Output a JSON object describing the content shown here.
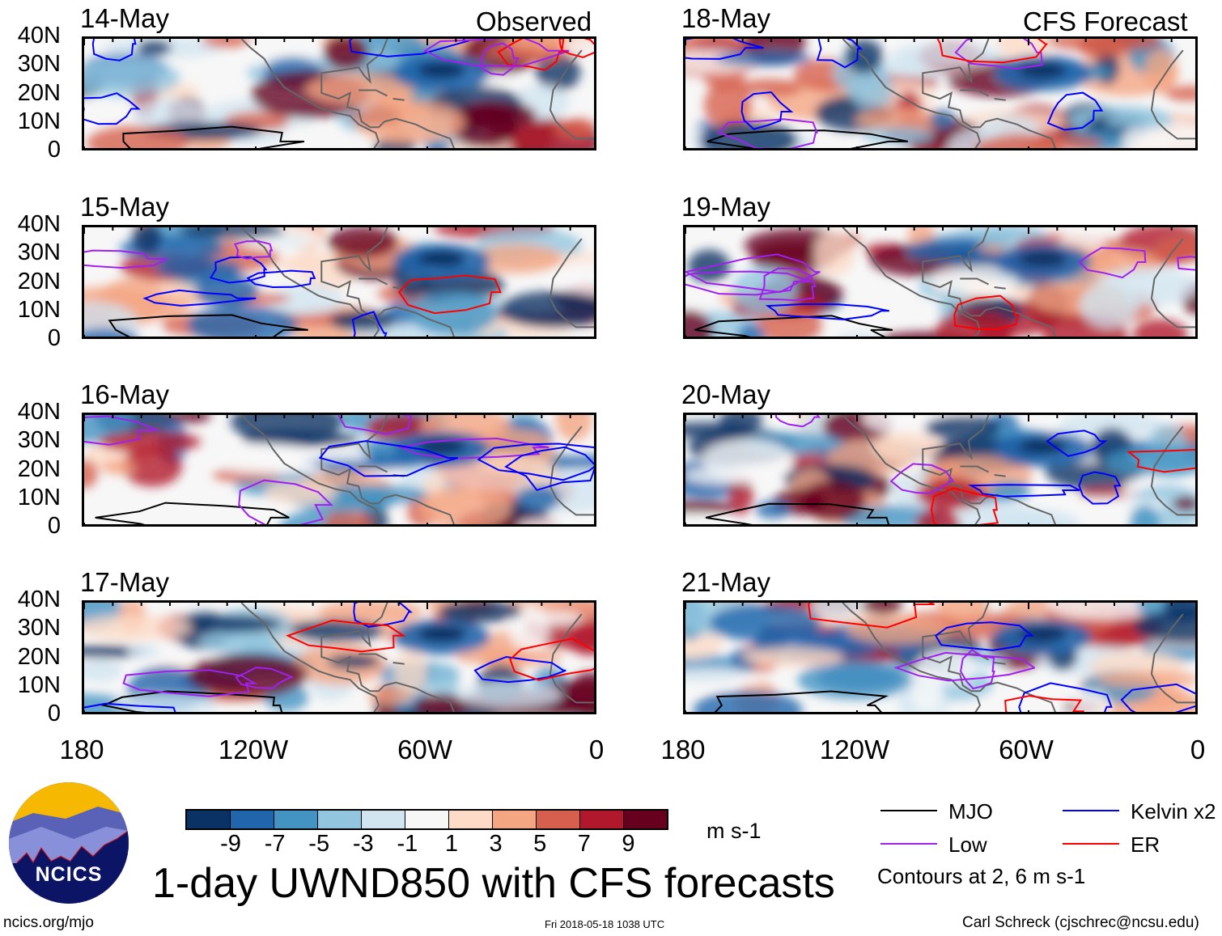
{
  "column_headers": {
    "left": "Observed",
    "right": "CFS Forecast"
  },
  "panels_left": [
    "14-May",
    "15-May",
    "16-May",
    "17-May"
  ],
  "panels_right": [
    "18-May",
    "19-May",
    "20-May",
    "21-May"
  ],
  "y_ticks": [
    "40N",
    "30N",
    "20N",
    "10N",
    "0"
  ],
  "x_ticks": [
    "180",
    "120W",
    "60W",
    "0"
  ],
  "colorbar": {
    "levels": [
      "-9",
      "-7",
      "-5",
      "-3",
      "-1",
      "1",
      "3",
      "5",
      "7",
      "9"
    ],
    "colors": [
      "#0a3264",
      "#2166ac",
      "#4393c3",
      "#92c5de",
      "#d1e5f0",
      "#f7f7f7",
      "#fddbc7",
      "#f4a582",
      "#d6604d",
      "#b2182b",
      "#67001f"
    ],
    "units": "m s-1"
  },
  "title": "1-day UWND850 with CFS forecasts",
  "legend": {
    "items": [
      {
        "label": "MJO",
        "color": "#000000"
      },
      {
        "label": "Kelvin x2",
        "color": "#0000ff"
      },
      {
        "label": "Low",
        "color": "#a020f0"
      },
      {
        "label": "ER",
        "color": "#ff0000"
      }
    ],
    "note": "Contours at 2, 6 m s-1"
  },
  "logo": {
    "text": "NCICS"
  },
  "footer": {
    "left": "ncics.org/mjo",
    "center": "Fri 2018-05-18 1038 UTC",
    "right": "Carl Schreck (cjschrec@ncsu.edu)"
  }
}
